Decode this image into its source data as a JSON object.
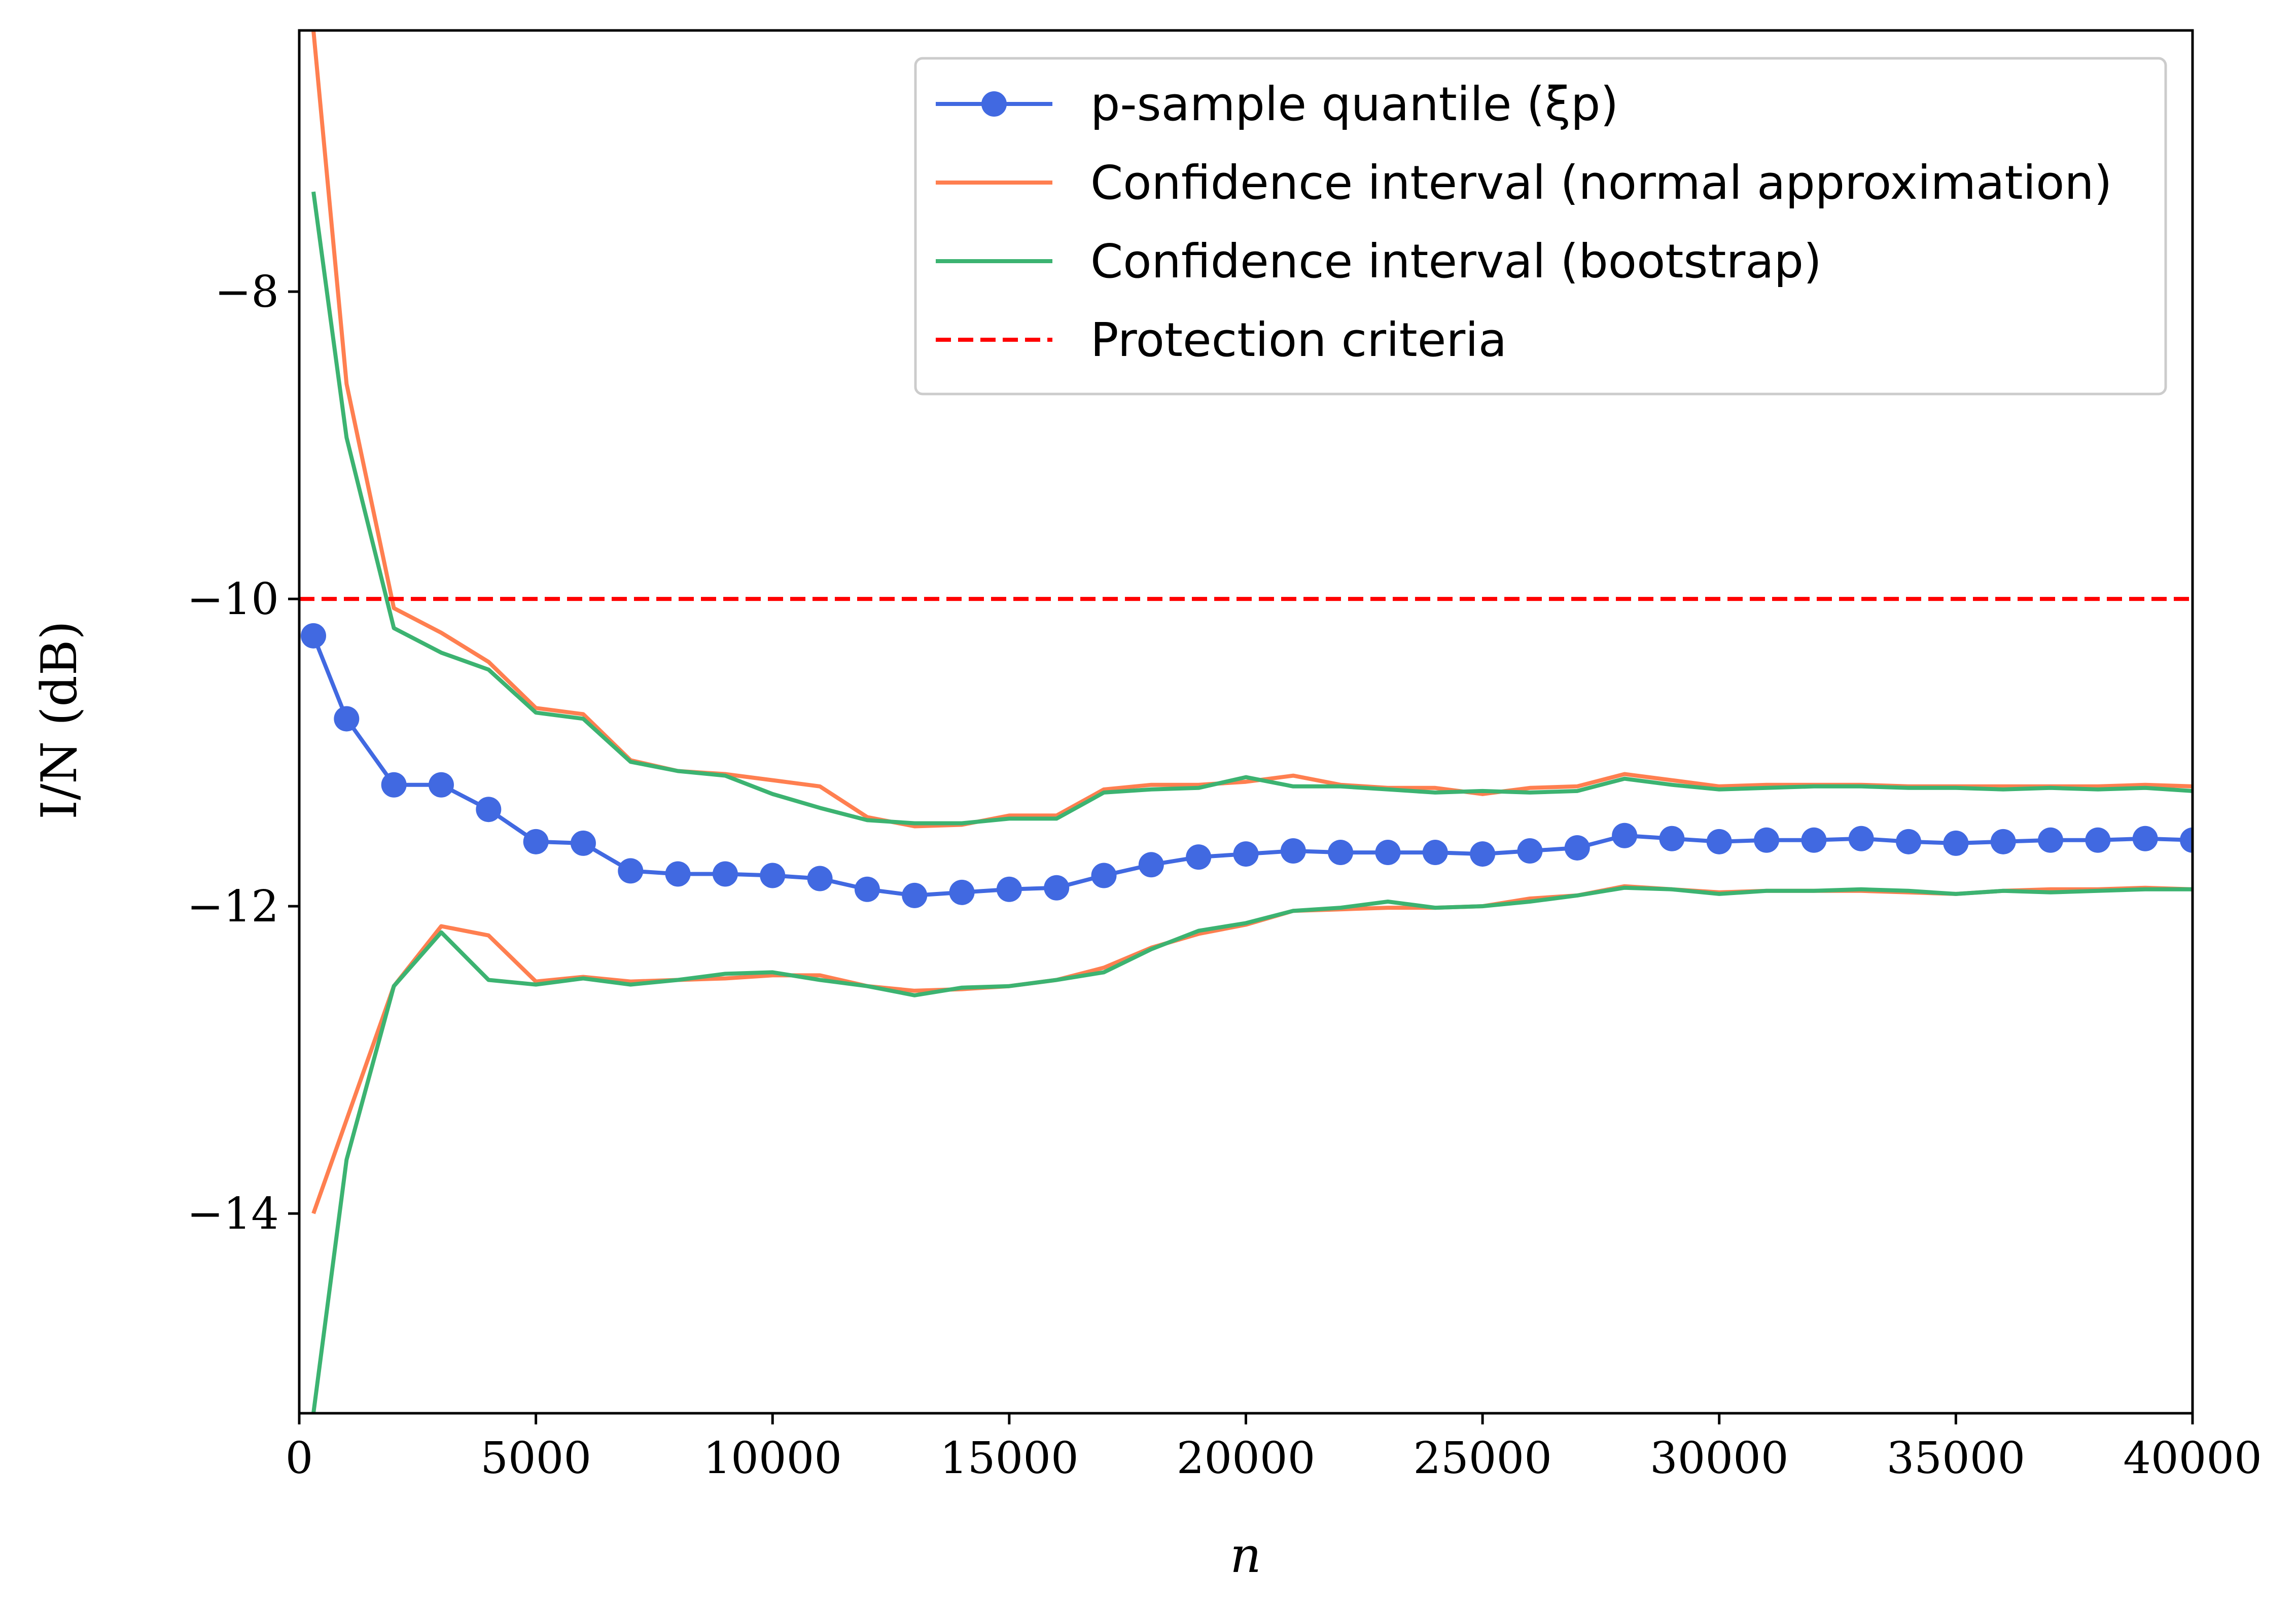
{
  "chart_data": {
    "type": "line",
    "xlabel": "n",
    "ylabel": "I/N (dB)",
    "xlim": [
      0,
      40000
    ],
    "ylim": [
      -15.3,
      -6.3
    ],
    "xticks": [
      0,
      5000,
      10000,
      15000,
      20000,
      25000,
      30000,
      35000,
      40000
    ],
    "xtick_labels": [
      "0",
      "5000",
      "10000",
      "15000",
      "20000",
      "25000",
      "30000",
      "35000",
      "40000"
    ],
    "yticks": [
      -8,
      -10,
      -12,
      -14
    ],
    "ytick_labels": [
      "−8",
      "−10",
      "−12",
      "−14"
    ],
    "grid": false,
    "legend_position": "top-right",
    "x": [
      300,
      1000,
      2000,
      3000,
      4000,
      5000,
      6000,
      7000,
      8000,
      9000,
      10000,
      11000,
      12000,
      13000,
      14000,
      15000,
      16000,
      17000,
      18000,
      19000,
      20000,
      21000,
      22000,
      23000,
      24000,
      25000,
      26000,
      27000,
      28000,
      29000,
      30000,
      31000,
      32000,
      33000,
      34000,
      35000,
      36000,
      37000,
      38000,
      39000,
      40000
    ],
    "series": [
      {
        "name": "p-sample quantile (ξp)",
        "color": "#4169e1",
        "style": "line-marker",
        "values": [
          -10.24,
          -10.78,
          -11.21,
          -11.21,
          -11.37,
          -11.58,
          -11.59,
          -11.77,
          -11.79,
          -11.79,
          -11.8,
          -11.82,
          -11.89,
          -11.93,
          -11.91,
          -11.89,
          -11.88,
          -11.8,
          -11.73,
          -11.68,
          -11.66,
          -11.64,
          -11.65,
          -11.65,
          -11.65,
          -11.66,
          -11.64,
          -11.62,
          -11.54,
          -11.56,
          -11.58,
          -11.57,
          -11.57,
          -11.56,
          -11.58,
          -11.59,
          -11.58,
          -11.57,
          -11.57,
          -11.56,
          -11.57
        ]
      },
      {
        "name": "Confidence interval (normal approximation)",
        "color": "#ff7f50",
        "style": "line",
        "upper": [
          -6.3,
          -8.6,
          -10.06,
          -10.22,
          -10.41,
          -10.71,
          -10.75,
          -11.05,
          -11.12,
          -11.14,
          -11.18,
          -11.22,
          -11.42,
          -11.48,
          -11.47,
          -11.41,
          -11.41,
          -11.24,
          -11.21,
          -11.21,
          -11.19,
          -11.15,
          -11.21,
          -11.23,
          -11.23,
          -11.27,
          -11.23,
          -11.22,
          -11.14,
          -11.18,
          -11.22,
          -11.21,
          -11.21,
          -11.21,
          -11.22,
          -11.22,
          -11.22,
          -11.22,
          -11.22,
          -11.21,
          -11.22
        ],
        "lower": [
          -14.0,
          -13.39,
          -12.52,
          -12.13,
          -12.19,
          -12.49,
          -12.46,
          -12.49,
          -12.48,
          -12.47,
          -12.45,
          -12.45,
          -12.52,
          -12.55,
          -12.54,
          -12.52,
          -12.48,
          -12.4,
          -12.27,
          -12.18,
          -12.12,
          -12.03,
          -12.02,
          -12.01,
          -12.01,
          -12.0,
          -11.95,
          -11.93,
          -11.87,
          -11.89,
          -11.91,
          -11.9,
          -11.9,
          -11.9,
          -11.91,
          -11.92,
          -11.9,
          -11.89,
          -11.89,
          -11.88,
          -11.89
        ]
      },
      {
        "name": "Confidence interval (bootstrap)",
        "color": "#3cb371",
        "style": "line",
        "upper": [
          -7.35,
          -8.95,
          -10.19,
          -10.35,
          -10.46,
          -10.74,
          -10.78,
          -11.06,
          -11.12,
          -11.15,
          -11.27,
          -11.36,
          -11.44,
          -11.46,
          -11.46,
          -11.43,
          -11.43,
          -11.26,
          -11.24,
          -11.23,
          -11.16,
          -11.22,
          -11.22,
          -11.24,
          -11.26,
          -11.25,
          -11.26,
          -11.25,
          -11.17,
          -11.21,
          -11.24,
          -11.23,
          -11.22,
          -11.22,
          -11.23,
          -11.23,
          -11.24,
          -11.23,
          -11.24,
          -11.23,
          -11.25
        ],
        "lower": [
          -15.3,
          -13.65,
          -12.52,
          -12.17,
          -12.48,
          -12.51,
          -12.47,
          -12.51,
          -12.48,
          -12.44,
          -12.43,
          -12.48,
          -12.52,
          -12.58,
          -12.53,
          -12.52,
          -12.48,
          -12.43,
          -12.28,
          -12.16,
          -12.11,
          -12.03,
          -12.01,
          -11.97,
          -12.01,
          -12.0,
          -11.97,
          -11.93,
          -11.88,
          -11.89,
          -11.92,
          -11.9,
          -11.9,
          -11.89,
          -11.9,
          -11.92,
          -11.9,
          -11.91,
          -11.9,
          -11.89,
          -11.89
        ]
      },
      {
        "name": "Protection criteria",
        "color": "#ff0000",
        "style": "dashed",
        "y": -10
      }
    ],
    "legend": [
      {
        "label": "p-sample quantile (ξp)",
        "color": "#4169e1",
        "style": "line-marker"
      },
      {
        "label": "Confidence interval (normal approximation)",
        "color": "#ff7f50",
        "style": "line"
      },
      {
        "label": "Confidence interval (bootstrap)",
        "color": "#3cb371",
        "style": "line"
      },
      {
        "label": "Protection criteria",
        "color": "#ff0000",
        "style": "dashed"
      }
    ]
  }
}
